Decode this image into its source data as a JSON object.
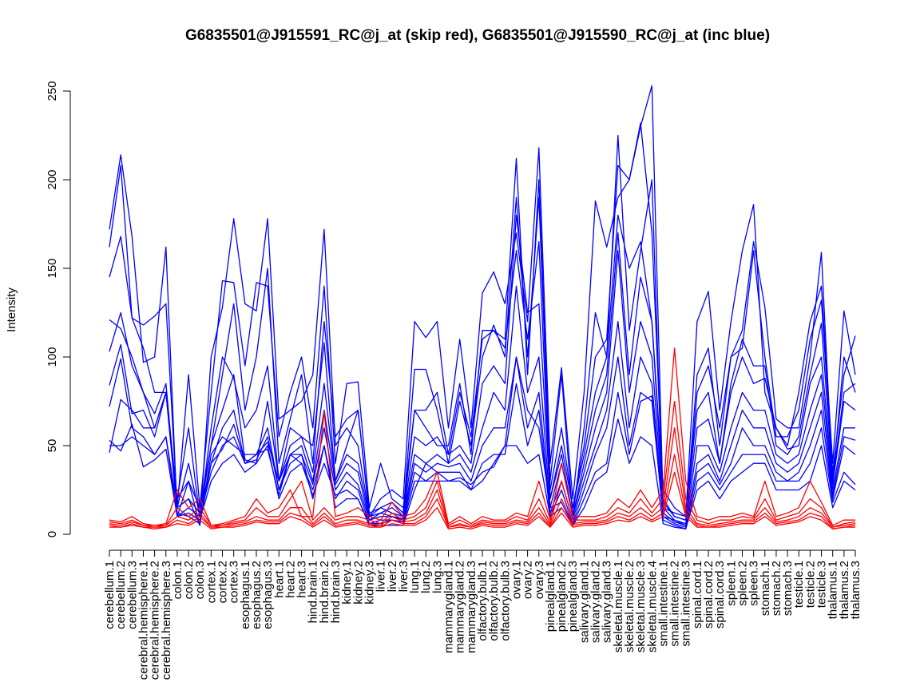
{
  "chart_data": {
    "type": "line",
    "title": "G6835501@J915591_RC@j_at (skip red), G6835501@J915590_RC@j_at (inc blue)",
    "xlabel": "",
    "ylabel": "Intensity",
    "ylim": [
      0,
      250
    ],
    "yticks": [
      0,
      50,
      100,
      150,
      200,
      250
    ],
    "grid": false,
    "categories": [
      "cerebellum.1",
      "cerebellum.2",
      "cerebellum.3",
      "cerebral.hemisphere.1",
      "cerebral.hemisphere.2",
      "cerebral.hemisphere.3",
      "colon.1",
      "colon.2",
      "colon.3",
      "cortex.1",
      "cortex.2",
      "cortex.3",
      "esophagus.1",
      "esophagus.2",
      "esophagus.3",
      "heart.1",
      "heart.2",
      "heart.3",
      "hind.brain.1",
      "hind.brain.2",
      "hind.brain.3",
      "kidney.1",
      "kidney.2",
      "kidney.3",
      "liver.1",
      "liver.2",
      "liver.3",
      "lung.1",
      "lung.2",
      "lung.3",
      "mammarygland.1",
      "mammarygland.2",
      "mammarygland.3",
      "olfactory.bulb.1",
      "olfactory.bulb.2",
      "olfactory.bulb.3",
      "ovary.1",
      "ovary.2",
      "ovary.3",
      "pinealgland.1",
      "pinealgland.2",
      "pinealgland.3",
      "salivary.gland.1",
      "salivary.gland.2",
      "salivary.gland.3",
      "skeletal.muscle.1",
      "skeletal.muscle.2",
      "skeletal.muscle.3",
      "skeletal.muscle.4",
      "small.intestine.1",
      "small.intestine.2",
      "small.intestine.3",
      "spinal.cord.1",
      "spinal.cord.2",
      "spinal.cord.3",
      "spleen.1",
      "spleen.2",
      "spleen.3",
      "stomach.1",
      "stomach.2",
      "stomach.3",
      "testicle.1",
      "testicle.2",
      "testicle.3",
      "thalamus.1",
      "thalamus.2",
      "thalamus.3"
    ],
    "series": [
      {
        "color": "#0000ff",
        "values": [
          172,
          214,
          168,
          97,
          100,
          162,
          10,
          30,
          5,
          100,
          128,
          178,
          130,
          126,
          178,
          65,
          70,
          75,
          90,
          172,
          50,
          60,
          50,
          10,
          20,
          25,
          20,
          120,
          111,
          120,
          60,
          110,
          60,
          136,
          148,
          130,
          170,
          120,
          218,
          40,
          94,
          20,
          80,
          188,
          162,
          190,
          200,
          230,
          253,
          15,
          12,
          10,
          120,
          137,
          70,
          120,
          160,
          186,
          80,
          60,
          50,
          80,
          120,
          140,
          40,
          126,
          90
        ]
      },
      {
        "color": "#0000ff",
        "values": [
          162,
          208,
          122,
          118,
          123,
          130,
          15,
          90,
          15,
          80,
          143,
          142,
          95,
          142,
          140,
          55,
          80,
          100,
          60,
          140,
          40,
          85,
          86,
          15,
          40,
          20,
          15,
          70,
          70,
          80,
          45,
          80,
          55,
          110,
          115,
          110,
          212,
          90,
          200,
          30,
          90,
          10,
          60,
          125,
          100,
          225,
          115,
          160,
          200,
          10,
          8,
          5,
          80,
          95,
          60,
          100,
          115,
          165,
          128,
          65,
          60,
          60,
          100,
          159,
          30,
          100,
          80
        ]
      },
      {
        "color": "#0000ff",
        "values": [
          145,
          168,
          122,
          105,
          80,
          80,
          20,
          60,
          10,
          50,
          90,
          130,
          70,
          100,
          150,
          40,
          65,
          90,
          40,
          120,
          55,
          65,
          70,
          12,
          15,
          18,
          12,
          93,
          93,
          70,
          40,
          75,
          50,
          100,
          118,
          100,
          190,
          100,
          190,
          25,
          60,
          15,
          50,
          100,
          110,
          208,
          200,
          232,
          170,
          20,
          10,
          8,
          90,
          105,
          50,
          100,
          105,
          160,
          100,
          55,
          55,
          70,
          110,
          132,
          35,
          90,
          112
        ]
      },
      {
        "color": "#0000ff",
        "values": [
          121,
          116,
          100,
          80,
          68,
          85,
          15,
          40,
          10,
          60,
          100,
          88,
          60,
          70,
          95,
          30,
          60,
          55,
          50,
          108,
          30,
          50,
          70,
          10,
          12,
          15,
          10,
          70,
          60,
          50,
          50,
          85,
          45,
          115,
          115,
          105,
          160,
          110,
          165,
          20,
          50,
          15,
          45,
          80,
          100,
          180,
          150,
          165,
          120,
          25,
          15,
          10,
          70,
          80,
          40,
          85,
          110,
          95,
          95,
          50,
          45,
          55,
          90,
          119,
          30,
          80,
          85
        ]
      },
      {
        "color": "#0000ff",
        "values": [
          103,
          125,
          95,
          80,
          60,
          80,
          20,
          30,
          15,
          50,
          70,
          90,
          42,
          40,
          75,
          30,
          50,
          55,
          35,
          85,
          30,
          45,
          40,
          10,
          15,
          12,
          10,
          55,
          50,
          55,
          45,
          50,
          40,
          85,
          95,
          85,
          180,
          125,
          130,
          20,
          45,
          10,
          40,
          70,
          90,
          170,
          90,
          145,
          120,
          18,
          10,
          8,
          60,
          65,
          40,
          80,
          100,
          85,
          88,
          60,
          48,
          50,
          85,
          100,
          28,
          75,
          70
        ]
      },
      {
        "color": "#0000ff",
        "values": [
          84,
          107,
          68,
          70,
          55,
          80,
          15,
          20,
          12,
          40,
          60,
          70,
          40,
          45,
          60,
          25,
          45,
          50,
          30,
          70,
          28,
          40,
          35,
          8,
          12,
          10,
          9,
          45,
          40,
          45,
          40,
          45,
          35,
          60,
          80,
          70,
          140,
          80,
          100,
          15,
          40,
          10,
          35,
          60,
          80,
          160,
          80,
          120,
          100,
          15,
          8,
          6,
          50,
          50,
          35,
          60,
          80,
          70,
          70,
          45,
          40,
          45,
          70,
          90,
          25,
          60,
          60
        ]
      },
      {
        "color": "#0000ff",
        "values": [
          72,
          99,
          60,
          55,
          45,
          55,
          10,
          15,
          10,
          35,
          50,
          55,
          40,
          42,
          55,
          25,
          40,
          45,
          28,
          60,
          25,
          35,
          28,
          8,
          10,
          10,
          8,
          40,
          35,
          40,
          38,
          40,
          30,
          50,
          60,
          60,
          100,
          60,
          80,
          12,
          30,
          8,
          30,
          50,
          70,
          120,
          60,
          100,
          85,
          12,
          7,
          5,
          40,
          45,
          30,
          50,
          70,
          60,
          60,
          40,
          35,
          40,
          60,
          80,
          22,
          55,
          53
        ]
      },
      {
        "color": "#0000ff",
        "values": [
          53,
          47,
          62,
          38,
          42,
          48,
          10,
          12,
          8,
          30,
          40,
          45,
          35,
          40,
          50,
          20,
          35,
          40,
          25,
          50,
          20,
          30,
          25,
          6,
          8,
          8,
          7,
          35,
          30,
          35,
          35,
          35,
          25,
          40,
          45,
          45,
          85,
          50,
          70,
          10,
          25,
          6,
          25,
          45,
          60,
          100,
          50,
          80,
          75,
          10,
          6,
          4,
          35,
          40,
          28,
          40,
          60,
          50,
          50,
          35,
          30,
          35,
          50,
          70,
          20,
          50,
          45
        ]
      },
      {
        "color": "#0000ff",
        "values": [
          46,
          76,
          70,
          60,
          60,
          80,
          12,
          10,
          6,
          40,
          48,
          62,
          40,
          45,
          52,
          30,
          45,
          40,
          22,
          40,
          22,
          25,
          20,
          6,
          6,
          8,
          6,
          30,
          30,
          30,
          30,
          32,
          28,
          35,
          38,
          50,
          100,
          70,
          60,
          15,
          18,
          5,
          20,
          35,
          40,
          80,
          45,
          75,
          78,
          8,
          5,
          3,
          30,
          35,
          25,
          35,
          45,
          45,
          45,
          30,
          30,
          30,
          40,
          60,
          18,
          35,
          28
        ]
      },
      {
        "color": "#0000ff",
        "values": [
          50,
          50,
          55,
          50,
          45,
          55,
          15,
          20,
          5,
          45,
          55,
          50,
          45,
          45,
          48,
          22,
          45,
          45,
          20,
          50,
          15,
          20,
          20,
          5,
          5,
          5,
          5,
          25,
          40,
          35,
          30,
          30,
          25,
          30,
          40,
          50,
          50,
          40,
          45,
          10,
          15,
          5,
          15,
          30,
          35,
          65,
          40,
          55,
          50,
          6,
          4,
          3,
          25,
          30,
          20,
          30,
          35,
          40,
          40,
          25,
          25,
          25,
          30,
          50,
          15,
          30,
          25
        ]
      },
      {
        "color": "#ff0000",
        "values": [
          8,
          7,
          10,
          6,
          5,
          6,
          25,
          15,
          20,
          5,
          6,
          8,
          10,
          20,
          12,
          15,
          25,
          10,
          10,
          69,
          10,
          12,
          15,
          10,
          8,
          18,
          10,
          12,
          20,
          35,
          6,
          10,
          6,
          10,
          8,
          8,
          12,
          10,
          30,
          8,
          40,
          10,
          10,
          10,
          12,
          20,
          15,
          25,
          15,
          25,
          105,
          30,
          10,
          8,
          10,
          10,
          12,
          10,
          30,
          10,
          12,
          15,
          30,
          18,
          5,
          8,
          8
        ]
      },
      {
        "color": "#ff0000",
        "values": [
          7,
          6,
          8,
          5,
          5,
          5,
          15,
          10,
          15,
          5,
          5,
          7,
          8,
          15,
          10,
          10,
          20,
          30,
          8,
          15,
          8,
          10,
          10,
          8,
          6,
          12,
          8,
          10,
          15,
          30,
          5,
          8,
          5,
          8,
          7,
          7,
          10,
          8,
          20,
          6,
          30,
          8,
          8,
          8,
          10,
          15,
          12,
          20,
          12,
          20,
          75,
          20,
          8,
          6,
          8,
          8,
          10,
          9,
          20,
          8,
          10,
          12,
          20,
          15,
          4,
          6,
          7
        ]
      },
      {
        "color": "#ff0000",
        "values": [
          6,
          5,
          7,
          5,
          4,
          5,
          10,
          8,
          12,
          4,
          5,
          6,
          7,
          10,
          8,
          8,
          15,
          15,
          6,
          12,
          6,
          8,
          8,
          6,
          5,
          10,
          7,
          8,
          12,
          25,
          4,
          6,
          4,
          7,
          6,
          6,
          8,
          7,
          15,
          5,
          20,
          6,
          7,
          7,
          8,
          12,
          10,
          15,
          10,
          15,
          60,
          15,
          6,
          5,
          6,
          7,
          8,
          8,
          15,
          7,
          8,
          10,
          15,
          12,
          4,
          5,
          6
        ]
      },
      {
        "color": "#ff0000",
        "values": [
          5,
          4,
          6,
          4,
          4,
          4,
          8,
          6,
          10,
          4,
          4,
          5,
          6,
          8,
          7,
          7,
          12,
          10,
          5,
          10,
          5,
          6,
          7,
          5,
          4,
          8,
          6,
          6,
          10,
          20,
          4,
          5,
          4,
          6,
          5,
          5,
          7,
          6,
          12,
          4,
          15,
          5,
          6,
          6,
          7,
          10,
          8,
          12,
          8,
          12,
          45,
          12,
          5,
          4,
          5,
          6,
          7,
          7,
          12,
          6,
          7,
          8,
          12,
          10,
          3,
          4,
          5
        ]
      },
      {
        "color": "#ff0000",
        "values": [
          4,
          4,
          5,
          4,
          3,
          4,
          6,
          5,
          8,
          3,
          4,
          4,
          5,
          7,
          6,
          6,
          10,
          8,
          4,
          8,
          4,
          5,
          6,
          4,
          4,
          6,
          5,
          5,
          8,
          15,
          3,
          4,
          3,
          5,
          4,
          4,
          6,
          5,
          10,
          4,
          12,
          4,
          5,
          5,
          6,
          8,
          7,
          10,
          7,
          10,
          35,
          10,
          4,
          4,
          4,
          5,
          6,
          6,
          10,
          5,
          6,
          7,
          10,
          8,
          3,
          4,
          4
        ]
      }
    ]
  }
}
